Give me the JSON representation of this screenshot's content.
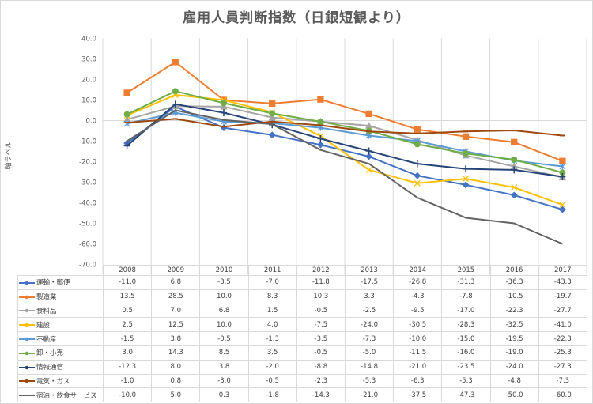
{
  "chart_data": {
    "type": "line",
    "title": "雇用人員判断指数（日銀短観より）",
    "ylabel": "軸ラベル",
    "xlabel": "",
    "ylim": [
      -70,
      40
    ],
    "ytick_step": 10,
    "yticks": [
      "40.0",
      "30.0",
      "20.0",
      "10.0",
      "0.0",
      "-10.0",
      "-20.0",
      "-30.0",
      "-40.0",
      "-50.0",
      "-60.0",
      "-70.0"
    ],
    "grid": "vertical category separators and zero line",
    "legend": "data table below chart",
    "categories": [
      "2008",
      "2009",
      "2010",
      "2011",
      "2012",
      "2013",
      "2014",
      "2015",
      "2016",
      "2017"
    ],
    "series": [
      {
        "name": "運輸・郵便",
        "color": "#4472C4",
        "marker": "diamond",
        "values": [
          -11.0,
          6.8,
          -3.5,
          -7.0,
          -11.8,
          -17.5,
          -26.8,
          -31.3,
          -36.3,
          -43.3
        ]
      },
      {
        "name": "製造業",
        "color": "#ED7D31",
        "marker": "square",
        "values": [
          13.5,
          28.5,
          10.0,
          8.3,
          10.3,
          3.3,
          -4.3,
          -7.8,
          -10.5,
          -19.7
        ]
      },
      {
        "name": "食料品",
        "color": "#A5A5A5",
        "marker": "triangle",
        "values": [
          0.5,
          7.0,
          6.8,
          1.5,
          -0.5,
          -2.5,
          -9.5,
          -17.0,
          -22.3,
          -27.7
        ]
      },
      {
        "name": "建設",
        "color": "#FFC000",
        "marker": "x",
        "values": [
          2.5,
          12.5,
          10.0,
          4.0,
          -7.5,
          -24.0,
          -30.5,
          -28.3,
          -32.5,
          -41.0
        ]
      },
      {
        "name": "不動産",
        "color": "#5B9BD5",
        "marker": "asterisk",
        "values": [
          -1.5,
          3.8,
          -0.5,
          -1.3,
          -3.5,
          -7.3,
          -10.0,
          -15.0,
          -19.5,
          -22.3
        ]
      },
      {
        "name": "卸・小売",
        "color": "#70AD47",
        "marker": "circle",
        "values": [
          3.0,
          14.3,
          8.5,
          3.5,
          -0.5,
          -5.0,
          -11.5,
          -16.0,
          -19.0,
          -25.3
        ]
      },
      {
        "name": "情報通信",
        "color": "#264478",
        "marker": "plus",
        "values": [
          -12.3,
          8.0,
          3.8,
          -2.0,
          -8.8,
          -14.8,
          -21.0,
          -23.5,
          -24.0,
          -27.3
        ]
      },
      {
        "name": "電気・ガス",
        "color": "#9E480E",
        "marker": "dash",
        "values": [
          -1.0,
          0.8,
          -3.0,
          -0.5,
          -2.3,
          -5.3,
          -6.3,
          -5.3,
          -4.8,
          -7.3
        ]
      },
      {
        "name": "宿泊・飲食サービス",
        "color": "#636363",
        "marker": "none",
        "values": [
          -10.0,
          5.0,
          0.3,
          -1.8,
          -14.3,
          -21.0,
          -37.5,
          -47.3,
          -50.0,
          -60.0
        ]
      }
    ]
  }
}
